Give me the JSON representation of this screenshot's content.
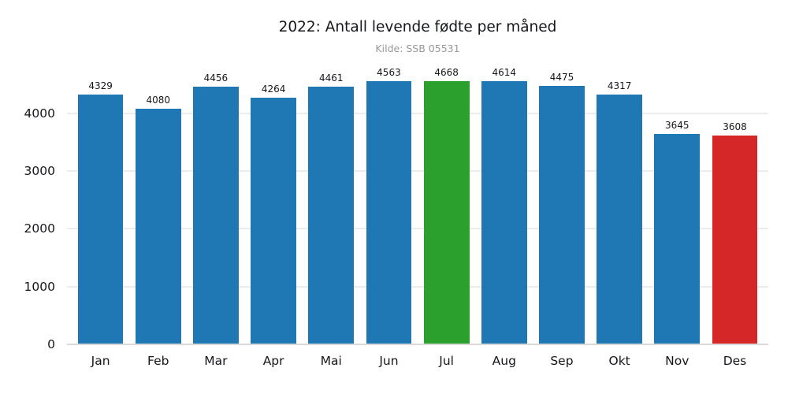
{
  "chart_data": {
    "type": "bar",
    "title": "2022: Antall levende fødte per måned",
    "subtitle": "Kilde: SSB 05531",
    "categories": [
      "Jan",
      "Feb",
      "Mar",
      "Apr",
      "Mai",
      "Jun",
      "Jul",
      "Aug",
      "Sep",
      "Okt",
      "Nov",
      "Des"
    ],
    "values": [
      4329,
      4080,
      4456,
      4264,
      4461,
      4563,
      4668,
      4614,
      4475,
      4317,
      3645,
      3608
    ],
    "bar_colors": [
      "#1f77b4",
      "#1f77b4",
      "#1f77b4",
      "#1f77b4",
      "#1f77b4",
      "#1f77b4",
      "#2ca02c",
      "#1f77b4",
      "#1f77b4",
      "#1f77b4",
      "#1f77b4",
      "#d62728"
    ],
    "value_labels_shown": true,
    "xlabel": "",
    "ylabel": "",
    "ylim": [
      0,
      4800
    ],
    "yticks": [
      0,
      1000,
      2000,
      3000,
      4000
    ],
    "grid": "horizontal",
    "legend": "none",
    "colors": {
      "bar_default": "#1f77b4",
      "bar_highlight_max": "#2ca02c",
      "bar_highlight_min": "#d62728",
      "gridline": "#ececec",
      "baseline": "#d9d9d9",
      "title_text": "#15171c",
      "subtitle_text": "#999999"
    }
  }
}
